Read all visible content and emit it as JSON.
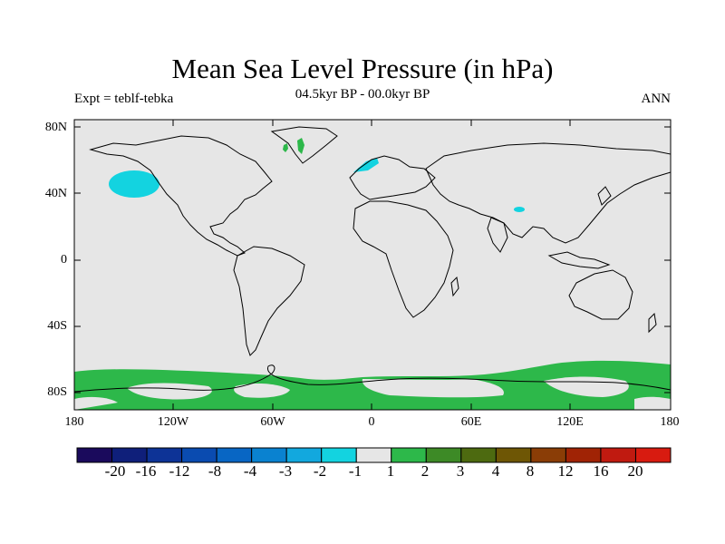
{
  "title": "Mean Sea Level Pressure (in hPa)",
  "subtitle": "04.5kyr BP - 00.0kyr BP",
  "left_label": "Expt = teblf-tebka",
  "right_label": "ANN",
  "lat_labels": [
    "80N",
    "40N",
    "0",
    "40S",
    "80S"
  ],
  "lon_labels": [
    "180",
    "120W",
    "60W",
    "0",
    "60E",
    "120E",
    "180"
  ],
  "colorbar": {
    "labels": [
      "-20",
      "-16",
      "-12",
      "-8",
      "-4",
      "-3",
      "-2",
      "-1",
      "1",
      "2",
      "3",
      "4",
      "8",
      "12",
      "16",
      "20"
    ],
    "colors": [
      "#1a0a5c",
      "#0f1f7a",
      "#0d3396",
      "#0a4bb0",
      "#0866c4",
      "#0a82d0",
      "#12a8de",
      "#13d3e0",
      "#e6e6e6",
      "#2db84a",
      "#3d8a26",
      "#4d6a10",
      "#6e5605",
      "#8a3d06",
      "#a02305",
      "#c01a10",
      "#d81b10"
    ]
  },
  "map": {
    "land_color": "#e6e6e6",
    "positive_color": "#2db84a",
    "negative_color": "#13d3e0"
  }
}
